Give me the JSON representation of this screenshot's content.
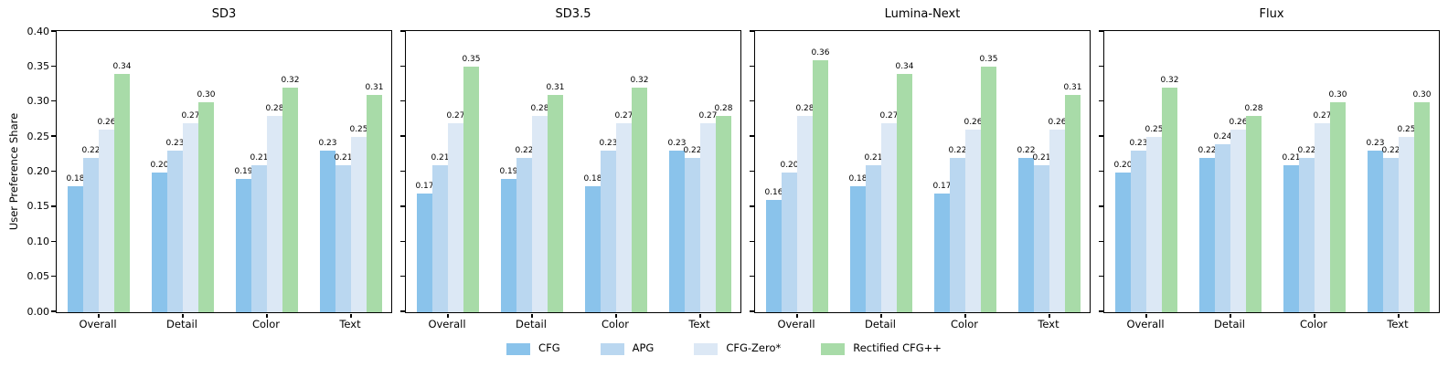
{
  "chart_data": {
    "type": "bar",
    "ylabel": "User Preference Share",
    "ylim": [
      0,
      0.4
    ],
    "ytick_values": [
      0.0,
      0.05,
      0.1,
      0.15,
      0.2,
      0.25,
      0.3,
      0.35,
      0.4
    ],
    "ytick_labels": [
      "0.00",
      "0.05",
      "0.10",
      "0.15",
      "0.20",
      "0.25",
      "0.30",
      "0.35",
      "0.40"
    ],
    "categories": [
      "Overall",
      "Detail",
      "Color",
      "Text"
    ],
    "grid": false,
    "value_label_decimals": 2,
    "legend": {
      "position": "bottom-center",
      "entries": [
        "CFG",
        "APG",
        "CFG-Zero*",
        "Rectified CFG++"
      ]
    },
    "series_colors": [
      "#8ac3eb",
      "#bad7f0",
      "#dce8f5",
      "#a8dba8"
    ],
    "subplots": [
      {
        "title": "SD3",
        "series": [
          {
            "name": "CFG",
            "values": [
              0.18,
              0.2,
              0.19,
              0.23
            ]
          },
          {
            "name": "APG",
            "values": [
              0.22,
              0.23,
              0.21,
              0.21
            ]
          },
          {
            "name": "CFG-Zero*",
            "values": [
              0.26,
              0.27,
              0.28,
              0.25
            ]
          },
          {
            "name": "Rectified CFG++",
            "values": [
              0.34,
              0.3,
              0.32,
              0.31
            ]
          }
        ]
      },
      {
        "title": "SD3.5",
        "series": [
          {
            "name": "CFG",
            "values": [
              0.17,
              0.19,
              0.18,
              0.23
            ]
          },
          {
            "name": "APG",
            "values": [
              0.21,
              0.22,
              0.23,
              0.22
            ]
          },
          {
            "name": "CFG-Zero*",
            "values": [
              0.27,
              0.28,
              0.27,
              0.27
            ]
          },
          {
            "name": "Rectified CFG++",
            "values": [
              0.35,
              0.31,
              0.32,
              0.28
            ]
          }
        ]
      },
      {
        "title": "Lumina-Next",
        "series": [
          {
            "name": "CFG",
            "values": [
              0.16,
              0.18,
              0.17,
              0.22
            ]
          },
          {
            "name": "APG",
            "values": [
              0.2,
              0.21,
              0.22,
              0.21
            ]
          },
          {
            "name": "CFG-Zero*",
            "values": [
              0.28,
              0.27,
              0.26,
              0.26
            ]
          },
          {
            "name": "Rectified CFG++",
            "values": [
              0.36,
              0.34,
              0.35,
              0.31
            ]
          }
        ]
      },
      {
        "title": "Flux",
        "series": [
          {
            "name": "CFG",
            "values": [
              0.2,
              0.22,
              0.21,
              0.23
            ]
          },
          {
            "name": "APG",
            "values": [
              0.23,
              0.24,
              0.22,
              0.22
            ]
          },
          {
            "name": "CFG-Zero*",
            "values": [
              0.25,
              0.26,
              0.27,
              0.25
            ]
          },
          {
            "name": "Rectified CFG++",
            "values": [
              0.32,
              0.28,
              0.3,
              0.3
            ]
          }
        ]
      }
    ]
  }
}
